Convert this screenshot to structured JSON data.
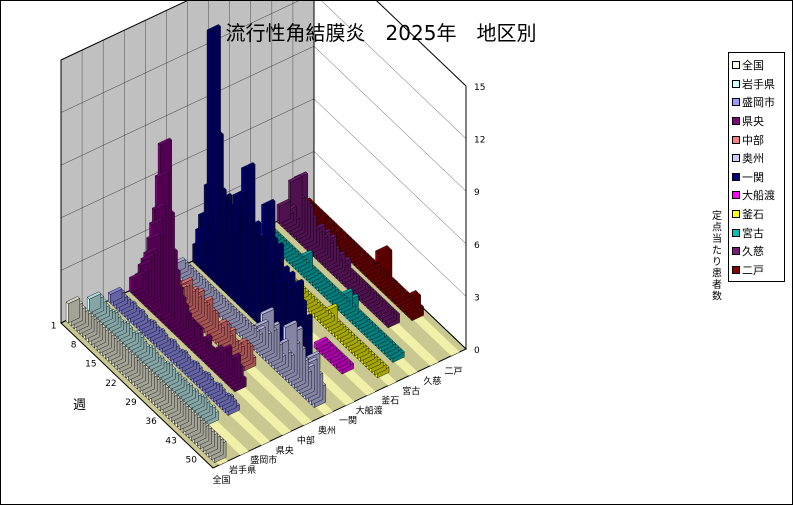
{
  "chart_data": {
    "type": "bar",
    "subtype": "3d-column",
    "title": "流行性角結膜炎　2025年　地区別",
    "xlabel": "週",
    "ylabel": "定点当たり患者数",
    "ylim": [
      0,
      15
    ],
    "yticks": [
      "0",
      "3",
      "6",
      "9",
      "12",
      "15"
    ],
    "week_ticks": [
      "1",
      "8",
      "15",
      "22",
      "29",
      "36",
      "43",
      "50"
    ],
    "legend_position": "right",
    "grid": true,
    "series": [
      {
        "name": "全国",
        "color": "#fafae6",
        "values": [
          1.1,
          1.0,
          0.9,
          0.9,
          0.9,
          0.9,
          0.9,
          0.9,
          0.9,
          0.9,
          0.9,
          0.9,
          0.9,
          0.9,
          0.9,
          0.9,
          0.9,
          0.9,
          0.9,
          0.9,
          0.9,
          0.9,
          0.9,
          0.9,
          0.9,
          0.9,
          0.9,
          0.9,
          0.9,
          0.9,
          0.9,
          0.9,
          0.9,
          0.9,
          0.9,
          0.9,
          0.9,
          0.9,
          0.9,
          0.9,
          0.9,
          0.9,
          0.9,
          0.9,
          0.9,
          0.9,
          0.9,
          0.9,
          0.9,
          0.9,
          0.9,
          0.9
        ]
      },
      {
        "name": "岩手県",
        "color": "#ccffff",
        "values": [
          0.8,
          0.8,
          0.7,
          0.6,
          0.5,
          0.6,
          0.7,
          0.6,
          0.5,
          0.6,
          0.7,
          0.6,
          0.5,
          0.6,
          0.8,
          0.7,
          0.6,
          0.5,
          0.6,
          0.7,
          0.6,
          0.5,
          0.6,
          0.5,
          0.6,
          0.7,
          0.6,
          0.5,
          0.6,
          0.5,
          0.6,
          0.5,
          0.6,
          0.5,
          0.6,
          0.5,
          0.6,
          0.7,
          0.6,
          0.5,
          0.6,
          0.5
        ]
      },
      {
        "name": "盛岡市",
        "color": "#9999ff",
        "values": [
          0.5,
          0.5,
          0.4,
          0.4,
          0.4,
          0.5,
          0.4,
          0.4,
          0.5,
          0.4,
          0.3,
          0.4,
          0.5,
          0.4,
          0.4,
          0.5,
          0.4,
          0.3,
          0.4,
          0.5,
          0.4,
          0.3,
          0.4,
          0.5,
          0.4,
          0.3,
          0.4,
          0.5,
          0.4,
          0.3,
          0.4,
          0.5,
          0.4,
          0.3,
          0.4,
          0.5,
          0.4,
          0.3,
          0.4,
          0.5,
          0.4,
          0.3
        ]
      },
      {
        "name": "県央",
        "color": "#800080",
        "values": [
          0.8,
          1.0,
          1.3,
          2.0,
          2.5,
          3.0,
          4.0,
          5.0,
          6.0,
          8.0,
          10.0,
          6.0,
          4.0,
          3.0,
          2.2,
          1.8,
          1.5,
          1.2,
          1.0,
          1.0,
          1.0,
          1.0,
          0.5,
          0.5,
          1.0,
          0.5,
          0.5,
          0.5,
          1.0,
          1.0,
          1.0,
          1.5,
          1.0,
          1.0,
          1.5,
          1.0,
          0.5
        ]
      },
      {
        "name": "中部",
        "color": "#ff8080",
        "values": [
          1.0,
          1.0,
          0.5,
          0.5,
          1.0,
          1.0,
          0.8,
          0.5,
          0.8,
          1.0,
          1.5,
          1.0,
          1.3,
          1.0,
          1.5,
          1.0,
          1.0,
          1.5,
          1.0,
          1.0,
          0.5,
          0.5,
          1.0,
          1.0,
          0.5,
          1.0,
          0.5,
          0.5,
          0.5,
          1.0,
          1.0,
          1.0,
          0.5
        ]
      },
      {
        "name": "奥州",
        "color": "#ccccff",
        "values": [
          0.5,
          0.5,
          0.5,
          0.5,
          0.5,
          0.5,
          0.5,
          0.5,
          0.5,
          0.5,
          0.5,
          0.5,
          0.5,
          0.5,
          0.5,
          0.5,
          0.5,
          0.5,
          0.5,
          0.5,
          0.5,
          0.5,
          0.5,
          0.5,
          0.5,
          0.5,
          0.5,
          0.5,
          1.0,
          1.5,
          1.0,
          2.5,
          1.5,
          2.0,
          1.0,
          0.5,
          1.5,
          1.0,
          1.0,
          3.0,
          2.0,
          3.0,
          2.0,
          1.5,
          1.0,
          1.5,
          2.0,
          2.5,
          1.5,
          1.0
        ]
      },
      {
        "name": "一関",
        "color": "#000080",
        "values": [
          1.0,
          2.0,
          3.0,
          2.0,
          5.0,
          14.0,
          8.0,
          5.0,
          4.0,
          5.0,
          3.0,
          4.0,
          5.0,
          4.0,
          6.0,
          4.5,
          5.0,
          8.0,
          4.0,
          5.0,
          4.0,
          4.5,
          4.0,
          3.0,
          7.0,
          5.0,
          4.0,
          5.0,
          3.0,
          4.0,
          3.0,
          4.0,
          3.0,
          3.5,
          4.0,
          3.0,
          2.0,
          2.5
        ]
      },
      {
        "name": "大船渡",
        "color": "#ff00ff",
        "values": [
          0,
          0,
          0,
          0,
          0,
          0,
          0,
          0,
          0,
          0,
          0,
          0,
          0,
          0,
          0,
          0,
          0,
          0,
          0,
          0,
          0,
          0,
          0,
          0,
          0,
          0,
          0,
          0,
          0,
          0,
          0,
          0,
          0,
          0,
          0,
          0.3,
          0.3,
          0.3,
          0.3,
          0.3,
          0.3,
          0.3,
          0.3,
          0.3,
          0.3
        ]
      },
      {
        "name": "釜石",
        "color": "#ffff00",
        "values": [
          0.5,
          0.5,
          0.3,
          0.3,
          0.3,
          1.0,
          0.3,
          0.3,
          0.3,
          0.3,
          0.3,
          0.3,
          0.3,
          0.3,
          0.3,
          0.3,
          0.3,
          0.3,
          0.3,
          0.3,
          0.3,
          0.3,
          0.3,
          0.3,
          0.3,
          0.3,
          0.3,
          0.3,
          0.3,
          0.3,
          0.3,
          1.0,
          0.3,
          0.3,
          0.3,
          0.3,
          0.3,
          0.3,
          0.3,
          0.3,
          0.3,
          0.3,
          0.3,
          0.3,
          0.3,
          0.3,
          0.3,
          0.3,
          0.3,
          0.3
        ]
      },
      {
        "name": "宮古",
        "color": "#00c0c0",
        "values": [
          0.3,
          0.3,
          0.3,
          0.3,
          0.3,
          0.3,
          0.3,
          0.3,
          0.3,
          0.3,
          0.3,
          0.3,
          0.3,
          0.3,
          0.3,
          1.0,
          0.3,
          0.3,
          0.3,
          0.3,
          0.3,
          0.3,
          0.3,
          0.3,
          0.3,
          0.3,
          0.3,
          0.3,
          0.3,
          1.0,
          0.3,
          1.0,
          0.3,
          0.3,
          0.3,
          0.3,
          0.3,
          0.3,
          0.3,
          0.3,
          0.3,
          0.3,
          0.3,
          0.3,
          0.3,
          0.3,
          0.3,
          0.3
        ]
      },
      {
        "name": "久慈",
        "color": "#7a1a7a",
        "values": [
          1.0,
          0.5,
          1.0,
          0.5,
          3.0,
          2.0,
          3.5,
          2.0,
          2.0,
          1.5,
          1.0,
          1.0,
          1.5,
          1.0,
          1.5,
          1.0,
          1.5,
          1.0,
          0.5,
          1.0,
          0.5,
          1.0,
          0.5,
          0.5,
          0.5,
          0.5,
          0.5,
          0.5,
          0.5,
          0.5,
          0.5,
          0.5,
          0.5,
          0.5,
          0.5,
          0.5,
          0.5,
          0.5,
          0.5
        ]
      },
      {
        "name": "二戸",
        "color": "#8b0000",
        "values": [
          0.5,
          0.5,
          0.5,
          0.5,
          0.5,
          0.5,
          0.5,
          0.5,
          0.5,
          0.5,
          0.5,
          0.5,
          0.5,
          0.5,
          0.5,
          0.5,
          0.5,
          0.5,
          0.5,
          0.5,
          0.5,
          0.5,
          0.5,
          0.5,
          0.5,
          0.5,
          0.5,
          2.0,
          2.0,
          0.5,
          0.5,
          0.5,
          0.5,
          0.5,
          0.5,
          0.5,
          0.5,
          1.0,
          1.0,
          0.5
        ]
      }
    ]
  },
  "colors": {
    "back_wall": "#c0c0c0",
    "side_wall": "#ffffff",
    "floor": "#c8c890",
    "floor_stripe": "#f0f0a8",
    "grid": "#000000"
  }
}
